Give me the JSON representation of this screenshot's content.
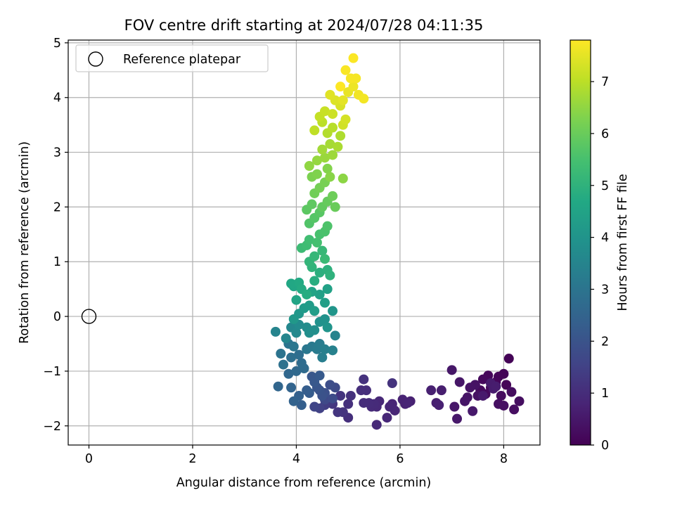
{
  "chart_data": {
    "type": "scatter",
    "title": "FOV centre drift starting at 2024/07/28 04:11:35",
    "xlabel": "Angular distance from reference (arcmin)",
    "ylabel": "Rotation from reference (arcmin)",
    "xlim": [
      -0.4,
      8.7
    ],
    "ylim": [
      -2.35,
      5.05
    ],
    "xticks": [
      0,
      2,
      4,
      6,
      8
    ],
    "yticks": [
      -2,
      -1,
      0,
      1,
      2,
      3,
      4,
      5
    ],
    "grid": true,
    "legend": {
      "placement": "top-left",
      "entries": [
        "Reference platepar"
      ]
    },
    "reference_point": {
      "x": 0,
      "y": 0,
      "name": "Reference platepar"
    },
    "colorbar": {
      "label": "Hours from first FF file",
      "range": [
        0,
        7.8
      ],
      "ticks": [
        0,
        1,
        2,
        3,
        4,
        5,
        6,
        7
      ],
      "colormap": "viridis"
    },
    "points": [
      [
        8.1,
        -0.77,
        0.04
      ],
      [
        8.0,
        -1.05,
        0.06
      ],
      [
        7.9,
        -1.1,
        0.08
      ],
      [
        8.05,
        -1.25,
        0.1
      ],
      [
        7.85,
        -1.2,
        0.12
      ],
      [
        7.7,
        -1.08,
        0.14
      ],
      [
        7.75,
        -1.3,
        0.16
      ],
      [
        7.6,
        -1.15,
        0.18
      ],
      [
        7.65,
        -1.42,
        0.2
      ],
      [
        7.55,
        -1.35,
        0.22
      ],
      [
        7.95,
        -1.45,
        0.24
      ],
      [
        8.15,
        -1.38,
        0.26
      ],
      [
        8.3,
        -1.55,
        0.28
      ],
      [
        8.2,
        -1.7,
        0.3
      ],
      [
        7.9,
        -1.6,
        0.32
      ],
      [
        8.0,
        -1.63,
        0.34
      ],
      [
        7.5,
        -1.45,
        0.36
      ],
      [
        7.45,
        -1.25,
        0.38
      ],
      [
        7.35,
        -1.3,
        0.4
      ],
      [
        7.3,
        -1.48,
        0.42
      ],
      [
        7.25,
        -1.55,
        0.44
      ],
      [
        7.15,
        -1.2,
        0.46
      ],
      [
        7.0,
        -0.98,
        0.48
      ],
      [
        7.05,
        -1.65,
        0.5
      ],
      [
        7.1,
        -1.87,
        0.52
      ],
      [
        7.4,
        -1.73,
        0.54
      ],
      [
        7.6,
        -1.45,
        0.56
      ],
      [
        7.8,
        -1.32,
        0.58
      ],
      [
        7.75,
        -1.22,
        0.6
      ],
      [
        7.85,
        -1.28,
        0.62
      ],
      [
        6.8,
        -1.35,
        0.64
      ],
      [
        6.7,
        -1.58,
        0.66
      ],
      [
        6.6,
        -1.35,
        0.68
      ],
      [
        6.75,
        -1.62,
        0.7
      ],
      [
        6.2,
        -1.55,
        0.72
      ],
      [
        6.1,
        -1.6,
        0.74
      ],
      [
        6.05,
        -1.52,
        0.76
      ],
      [
        6.15,
        -1.58,
        0.78
      ],
      [
        5.85,
        -1.6,
        0.8
      ],
      [
        5.9,
        -1.72,
        0.82
      ],
      [
        5.8,
        -1.65,
        0.84
      ],
      [
        5.75,
        -1.85,
        0.86
      ],
      [
        5.6,
        -1.55,
        0.88
      ],
      [
        5.55,
        -1.65,
        0.9
      ],
      [
        5.55,
        -1.98,
        0.92
      ],
      [
        5.45,
        -1.65,
        0.94
      ],
      [
        5.5,
        -1.6,
        0.96
      ],
      [
        5.4,
        -1.58,
        0.98
      ],
      [
        5.3,
        -1.58,
        1.0
      ],
      [
        5.35,
        -1.35,
        1.02
      ],
      [
        5.25,
        -1.35,
        1.04
      ],
      [
        5.0,
        -1.85,
        1.06
      ],
      [
        5.0,
        -1.6,
        1.08
      ],
      [
        5.05,
        -1.45,
        1.1
      ],
      [
        5.3,
        -1.15,
        1.12
      ],
      [
        5.85,
        -1.22,
        1.14
      ],
      [
        4.9,
        -1.75,
        1.16
      ],
      [
        4.85,
        -1.45,
        1.18
      ],
      [
        4.8,
        -1.75,
        1.2
      ],
      [
        4.7,
        -1.6,
        1.22
      ],
      [
        4.65,
        -1.55,
        1.3
      ],
      [
        4.55,
        -1.62,
        1.4
      ],
      [
        4.45,
        -1.68,
        1.5
      ],
      [
        4.35,
        -1.65,
        1.6
      ],
      [
        4.55,
        -1.52,
        1.7
      ],
      [
        4.75,
        -1.3,
        1.75
      ],
      [
        4.7,
        -1.5,
        1.8
      ],
      [
        4.65,
        -1.25,
        1.85
      ],
      [
        4.55,
        -1.4,
        1.9
      ],
      [
        4.5,
        -1.45,
        1.95
      ],
      [
        4.45,
        -1.35,
        2.0
      ],
      [
        4.4,
        -1.3,
        2.05
      ],
      [
        4.3,
        -1.1,
        2.1
      ],
      [
        4.35,
        -1.2,
        2.15
      ],
      [
        4.45,
        -1.08,
        2.2
      ],
      [
        4.25,
        -1.4,
        2.25
      ],
      [
        4.2,
        -1.35,
        2.3
      ],
      [
        4.1,
        -1.62,
        2.35
      ],
      [
        4.05,
        -1.45,
        2.4
      ],
      [
        3.95,
        -1.55,
        2.45
      ],
      [
        3.9,
        -1.3,
        2.5
      ],
      [
        3.65,
        -1.28,
        2.55
      ],
      [
        3.85,
        -1.05,
        2.6
      ],
      [
        4.0,
        -1.0,
        2.65
      ],
      [
        4.15,
        -0.95,
        2.7
      ],
      [
        4.1,
        -0.85,
        2.75
      ],
      [
        4.05,
        -0.7,
        2.8
      ],
      [
        3.9,
        -0.75,
        2.85
      ],
      [
        3.75,
        -0.88,
        2.9
      ],
      [
        3.7,
        -0.68,
        2.95
      ],
      [
        3.85,
        -0.5,
        3.0
      ],
      [
        3.95,
        -0.55,
        3.05
      ],
      [
        4.2,
        -0.6,
        3.1
      ],
      [
        4.3,
        -0.55,
        3.15
      ],
      [
        4.4,
        -0.6,
        3.2
      ],
      [
        4.45,
        -0.5,
        3.25
      ],
      [
        4.5,
        -0.75,
        3.3
      ],
      [
        4.55,
        -0.6,
        3.35
      ],
      [
        4.7,
        -0.62,
        3.4
      ],
      [
        4.75,
        -0.35,
        3.45
      ],
      [
        3.6,
        -0.28,
        3.5
      ],
      [
        3.8,
        -0.4,
        3.55
      ],
      [
        3.9,
        -0.2,
        3.6
      ],
      [
        4.0,
        -0.3,
        3.65
      ],
      [
        4.05,
        -0.15,
        3.7
      ],
      [
        4.2,
        -0.2,
        3.75
      ],
      [
        4.25,
        -0.3,
        3.8
      ],
      [
        4.35,
        -0.25,
        3.85
      ],
      [
        4.45,
        -0.1,
        3.9
      ],
      [
        4.55,
        -0.05,
        3.95
      ],
      [
        4.6,
        -0.2,
        4.0
      ],
      [
        4.7,
        0.1,
        4.05
      ],
      [
        4.05,
        0.05,
        4.1
      ],
      [
        3.95,
        -0.05,
        4.15
      ],
      [
        4.15,
        0.15,
        4.2
      ],
      [
        4.25,
        0.2,
        4.25
      ],
      [
        4.35,
        0.1,
        4.3
      ],
      [
        4.55,
        0.25,
        4.35
      ],
      [
        4.45,
        0.4,
        4.4
      ],
      [
        4.6,
        0.5,
        4.45
      ],
      [
        4.3,
        0.45,
        4.5
      ],
      [
        4.0,
        0.3,
        4.55
      ],
      [
        3.95,
        0.55,
        4.6
      ],
      [
        3.9,
        0.6,
        4.65
      ],
      [
        4.05,
        0.62,
        4.7
      ],
      [
        4.1,
        0.5,
        4.75
      ],
      [
        4.2,
        0.4,
        4.8
      ],
      [
        4.35,
        0.65,
        4.85
      ],
      [
        4.45,
        0.8,
        4.9
      ],
      [
        4.6,
        0.85,
        4.95
      ],
      [
        4.65,
        0.75,
        5.0
      ],
      [
        4.3,
        0.9,
        5.05
      ],
      [
        4.25,
        1.0,
        5.1
      ],
      [
        4.35,
        1.1,
        5.15
      ],
      [
        4.5,
        1.2,
        5.2
      ],
      [
        4.55,
        1.05,
        5.25
      ],
      [
        4.1,
        1.25,
        5.3
      ],
      [
        4.2,
        1.3,
        5.35
      ],
      [
        4.25,
        1.4,
        5.4
      ],
      [
        4.4,
        1.35,
        5.45
      ],
      [
        4.45,
        1.5,
        5.5
      ],
      [
        4.55,
        1.55,
        5.55
      ],
      [
        4.6,
        1.65,
        5.6
      ],
      [
        4.25,
        1.7,
        5.65
      ],
      [
        4.35,
        1.8,
        5.7
      ],
      [
        4.45,
        1.9,
        5.75
      ],
      [
        4.2,
        1.95,
        5.8
      ],
      [
        4.3,
        2.05,
        5.85
      ],
      [
        4.5,
        2.0,
        5.9
      ],
      [
        4.6,
        2.1,
        5.95
      ],
      [
        4.75,
        2.0,
        6.0
      ],
      [
        4.7,
        2.2,
        6.05
      ],
      [
        4.35,
        2.25,
        6.1
      ],
      [
        4.45,
        2.35,
        6.15
      ],
      [
        4.55,
        2.45,
        6.2
      ],
      [
        4.3,
        2.55,
        6.25
      ],
      [
        4.4,
        2.6,
        6.3
      ],
      [
        4.6,
        2.7,
        6.35
      ],
      [
        4.65,
        2.55,
        6.4
      ],
      [
        4.9,
        2.52,
        6.45
      ],
      [
        4.25,
        2.75,
        6.5
      ],
      [
        4.4,
        2.85,
        6.55
      ],
      [
        4.55,
        2.9,
        6.6
      ],
      [
        4.7,
        2.95,
        6.65
      ],
      [
        4.5,
        3.05,
        6.7
      ],
      [
        4.65,
        3.15,
        6.75
      ],
      [
        4.8,
        3.1,
        6.8
      ],
      [
        4.85,
        3.3,
        6.85
      ],
      [
        4.6,
        3.35,
        6.9
      ],
      [
        4.7,
        3.45,
        6.95
      ],
      [
        4.5,
        3.55,
        7.0
      ],
      [
        4.35,
        3.4,
        7.05
      ],
      [
        4.45,
        3.65,
        7.1
      ],
      [
        4.55,
        3.75,
        7.15
      ],
      [
        4.7,
        3.7,
        7.2
      ],
      [
        4.9,
        3.5,
        7.25
      ],
      [
        4.95,
        3.6,
        7.3
      ],
      [
        4.85,
        3.85,
        7.35
      ],
      [
        4.75,
        3.95,
        7.4
      ],
      [
        4.65,
        4.05,
        7.45
      ],
      [
        4.9,
        3.95,
        7.5
      ],
      [
        5.0,
        4.1,
        7.55
      ],
      [
        5.1,
        4.2,
        7.6
      ],
      [
        5.2,
        4.05,
        7.65
      ],
      [
        5.3,
        3.98,
        7.68
      ],
      [
        5.15,
        4.35,
        7.7
      ],
      [
        5.05,
        4.35,
        7.72
      ],
      [
        4.95,
        4.5,
        7.75
      ],
      [
        5.1,
        4.72,
        7.78
      ],
      [
        4.85,
        4.2,
        7.8
      ]
    ]
  }
}
